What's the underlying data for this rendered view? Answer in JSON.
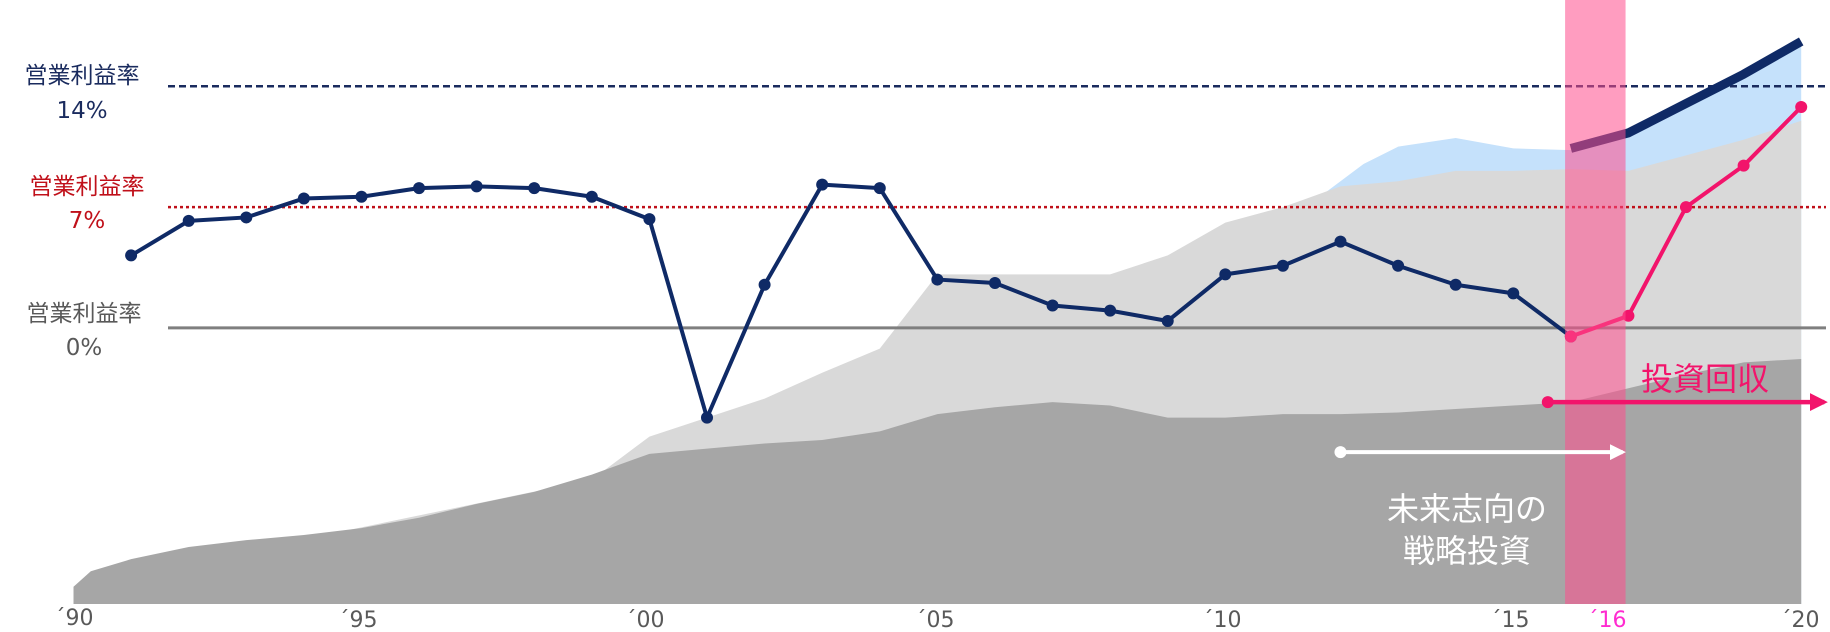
{
  "chart_data": {
    "type": "line",
    "title": "",
    "xlabel": "",
    "ylabel": "",
    "x_ticks": [
      "´90",
      "´95",
      "´00",
      "´05",
      "´10",
      "´15",
      "´16",
      "´20"
    ],
    "reference_lines": [
      {
        "label_line1": "営業利益率",
        "label_line2": "14%",
        "value": 14,
        "style": "dashed",
        "color": "#1a2b5e"
      },
      {
        "label_line1": "営業利益率",
        "label_line2": "7%",
        "value": 7,
        "style": "dotted",
        "color": "#c0101a"
      },
      {
        "label_line1": "営業利益率",
        "label_line2": "0%",
        "value": 0,
        "style": "solid",
        "color": "#7f7f7f"
      }
    ],
    "annotations": {
      "future_investment_line1": "未来志向の",
      "future_investment_line2": "戦略投資",
      "recovery": "投資回収"
    },
    "highlight_year": "´16",
    "colors": {
      "navy": "#0f2a66",
      "pink": "#f2146b",
      "highlight_band": "#ff4d8d",
      "light_blue": "#c5e1fb",
      "light_gray": "#d9d9d9",
      "dark_gray": "#a6a6a6",
      "white": "#ffffff",
      "tick_highlight": "#ff2bd0"
    },
    "series": [
      {
        "name": "",
        "color": "#0f2a66",
        "points": [
          [
            1991,
            4.2
          ],
          [
            1992,
            6.2
          ],
          [
            1993,
            6.4
          ],
          [
            1994,
            7.5
          ],
          [
            1995,
            7.6
          ],
          [
            1996,
            8.1
          ],
          [
            1997,
            8.2
          ],
          [
            1998,
            8.1
          ],
          [
            1999,
            7.6
          ],
          [
            2000,
            6.3
          ],
          [
            2001,
            -5.2
          ],
          [
            2002,
            2.5
          ],
          [
            2003,
            8.3
          ],
          [
            2004,
            8.1
          ],
          [
            2005,
            2.8
          ],
          [
            2006,
            2.6
          ],
          [
            2007,
            1.3
          ],
          [
            2008,
            1.0
          ],
          [
            2009,
            0.4
          ],
          [
            2010,
            3.1
          ],
          [
            2011,
            3.6
          ],
          [
            2012,
            5.0
          ],
          [
            2013,
            3.6
          ],
          [
            2014,
            2.5
          ],
          [
            2015,
            2.0
          ],
          [
            2016,
            -0.5
          ]
        ]
      },
      {
        "name": "",
        "color": "#f2146b",
        "points": [
          [
            2016,
            -0.5
          ],
          [
            2017,
            0.7
          ],
          [
            2018,
            7.0
          ],
          [
            2019,
            9.4
          ],
          [
            2020,
            12.8
          ]
        ]
      }
    ],
    "areas": [
      {
        "name": "",
        "color": "#c5e1fb",
        "points": [
          [
            2011.4,
            7.0
          ],
          [
            2012.4,
            9.5
          ],
          [
            2013,
            10.5
          ],
          [
            2014,
            11.0
          ],
          [
            2015,
            10.4
          ],
          [
            2016,
            10.3
          ],
          [
            2017,
            11.3
          ],
          [
            2018,
            13.0
          ],
          [
            2019,
            14.7
          ],
          [
            2020,
            16.6
          ]
        ]
      },
      {
        "name": "",
        "color": "#d9d9d9",
        "points": [
          [
            1990,
            -15.0
          ],
          [
            1999,
            -8.8
          ],
          [
            2000,
            -6.3
          ],
          [
            2001,
            -5.2
          ],
          [
            2002,
            -4.1
          ],
          [
            2003,
            -2.6
          ],
          [
            2004,
            -1.2
          ],
          [
            2005,
            3.1
          ],
          [
            2006,
            3.1
          ],
          [
            2007,
            3.1
          ],
          [
            2008,
            3.1
          ],
          [
            2009,
            4.2
          ],
          [
            2010,
            6.1
          ],
          [
            2011,
            7.0
          ],
          [
            2012,
            8.2
          ],
          [
            2013,
            8.5
          ],
          [
            2014,
            9.1
          ],
          [
            2015,
            9.1
          ],
          [
            2016,
            9.2
          ],
          [
            2017,
            9.1
          ],
          [
            2018,
            10.0
          ],
          [
            2019,
            10.9
          ],
          [
            2020,
            12.0
          ]
        ]
      },
      {
        "name": "",
        "color": "#a6a6a6",
        "points": [
          [
            1990,
            -15.0
          ],
          [
            1990.3,
            -14.1
          ],
          [
            1991,
            -13.4
          ],
          [
            1992,
            -12.7
          ],
          [
            1993,
            -12.3
          ],
          [
            1994,
            -12.0
          ],
          [
            1995,
            -11.6
          ],
          [
            1996,
            -11.0
          ],
          [
            1997,
            -10.2
          ],
          [
            1998,
            -9.5
          ],
          [
            1999,
            -8.5
          ],
          [
            2000,
            -7.3
          ],
          [
            2001,
            -7.0
          ],
          [
            2002,
            -6.7
          ],
          [
            2003,
            -6.5
          ],
          [
            2004,
            -6.0
          ],
          [
            2005,
            -5.0
          ],
          [
            2006,
            -4.6
          ],
          [
            2007,
            -4.3
          ],
          [
            2008,
            -4.5
          ],
          [
            2009,
            -5.2
          ],
          [
            2010,
            -5.2
          ],
          [
            2011,
            -5.0
          ],
          [
            2012,
            -5.0
          ],
          [
            2013,
            -4.9
          ],
          [
            2014,
            -4.7
          ],
          [
            2015,
            -4.5
          ],
          [
            2016,
            -4.3
          ],
          [
            2017,
            -3.5
          ],
          [
            2018,
            -2.7
          ],
          [
            2019,
            -2.0
          ],
          [
            2020,
            -1.8
          ]
        ]
      }
    ],
    "thick_band_line": {
      "color": "#0f2a66",
      "points": [
        [
          2016,
          10.4
        ],
        [
          2017,
          11.3
        ],
        [
          2018,
          13.0
        ],
        [
          2019,
          14.7
        ],
        [
          2020,
          16.6
        ]
      ]
    },
    "arrows": {
      "investment": {
        "from_year": 2012,
        "to_year": 2016.9,
        "value": -7.2,
        "color": "#ffffff"
      },
      "recovery": {
        "from_year": 2015.6,
        "to_year": 2020.4,
        "value": -4.3,
        "color": "#f2146b"
      }
    },
    "x_range": [
      1989.8,
      2020.5
    ],
    "y_range": [
      -16.0,
      19.0
    ]
  }
}
